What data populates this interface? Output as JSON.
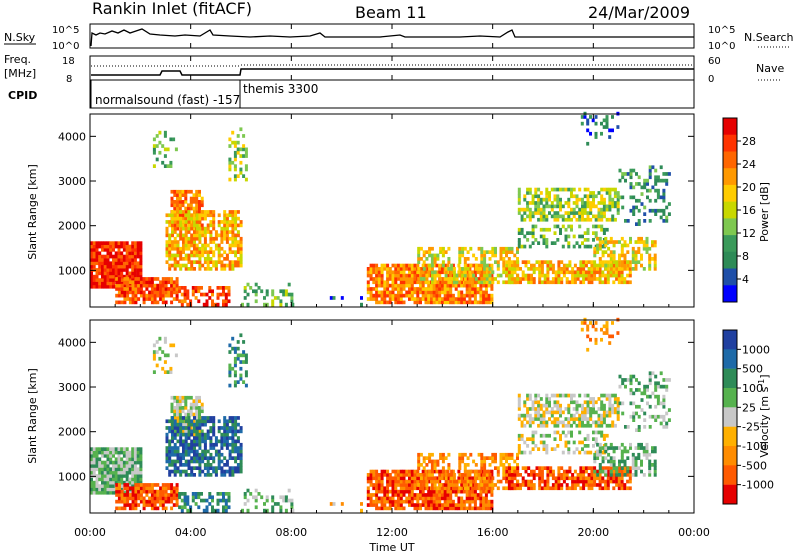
{
  "header": {
    "station": "Rankin Inlet (fitACF)",
    "beam": "Beam 11",
    "date": "24/Mar/2009"
  },
  "strip_labels": {
    "nsky": "N.Sky",
    "nsearch": "N.Search",
    "freq": "Freq.",
    "freq_unit": "[MHz]",
    "cpid": "CPID",
    "nave": "Nave"
  },
  "strip_ticks": {
    "noise_left_top": "10^5",
    "noise_left_bottom": "10^0",
    "noise_right_top": "10^5",
    "noise_right_bottom": "10^0",
    "freq_top": "18",
    "freq_bottom": "8",
    "nave_top": "60",
    "nave_bottom": "0"
  },
  "cpid_labels": {
    "first": "normalsound (fast) -157",
    "second": "themis 3300"
  },
  "chart_data": {
    "type": "heatmap",
    "panels": [
      {
        "name": "power",
        "ylabel": "Slant Range [km]",
        "ylim": [
          180,
          4500
        ],
        "yticks": [
          1000,
          2000,
          3000,
          4000
        ],
        "colorbar_label": "Power [dB]",
        "colorbar_ticks": [
          "28",
          "24",
          "20",
          "16",
          "12",
          "8",
          "4"
        ],
        "colors": [
          "#e60000",
          "#ff3300",
          "#ff6600",
          "#ff9900",
          "#ffcc00",
          "#c8d800",
          "#7ec850",
          "#3a9a5a",
          "#2e8b57",
          "#1f4fa8",
          "#0000ff"
        ]
      },
      {
        "name": "velocity",
        "ylabel": "Slant Range [km]",
        "ylim": [
          180,
          4500
        ],
        "yticks": [
          1000,
          2000,
          3000,
          4000
        ],
        "colorbar_label": "Velocity [m s^-1]",
        "colorbar_ticks": [
          "1000",
          "500",
          "100",
          "25",
          "-25",
          "-100",
          "-500",
          "-1000"
        ],
        "colors": [
          "#2040a0",
          "#1e6aa8",
          "#2e8b57",
          "#56b24e",
          "#c8c8c8",
          "#ffb000",
          "#ff8c00",
          "#ff5a00",
          "#e60000"
        ]
      }
    ],
    "x_ticks": [
      "00:00",
      "04:00",
      "08:00",
      "12:00",
      "16:00",
      "20:00",
      "00:00"
    ],
    "xlabel": "Time UT",
    "xlim_hours": [
      0,
      24
    ]
  }
}
